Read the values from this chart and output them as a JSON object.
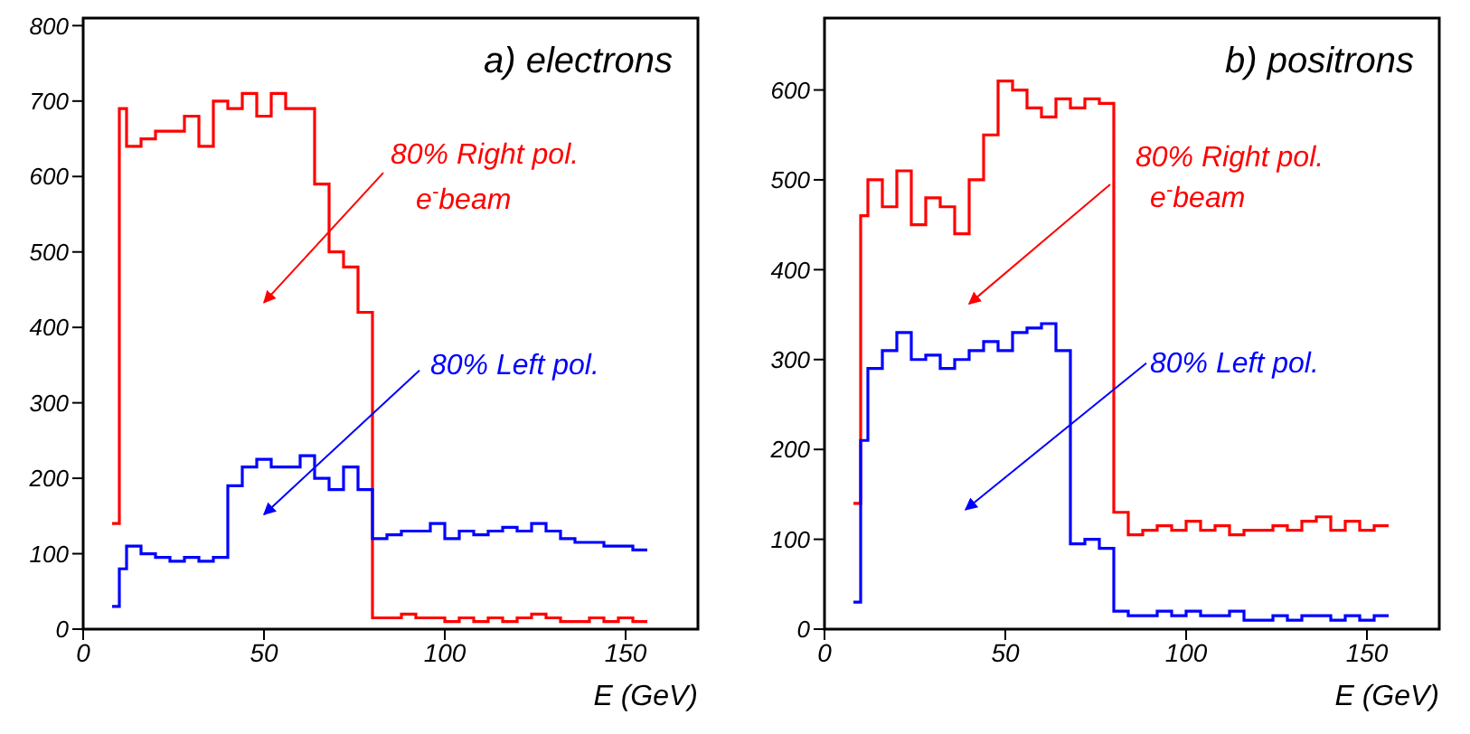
{
  "chart_data": [
    {
      "type": "histogram",
      "title": "a) electrons",
      "xlabel": "E (GeV)",
      "bins": [
        8,
        10,
        12,
        16,
        20,
        24,
        28,
        32,
        36,
        40,
        44,
        48,
        52,
        56,
        60,
        64,
        68,
        72,
        76,
        80,
        84,
        88,
        92,
        96,
        100,
        104,
        108,
        112,
        116,
        120,
        124,
        128,
        132,
        136,
        140,
        144,
        148,
        152,
        156
      ],
      "series": [
        {
          "color": "#ff0000",
          "values": [
            140,
            690,
            640,
            650,
            660,
            660,
            680,
            640,
            700,
            690,
            710,
            680,
            710,
            690,
            690,
            590,
            500,
            480,
            420,
            15,
            15,
            20,
            15,
            15,
            10,
            15,
            10,
            15,
            10,
            15,
            20,
            15,
            10,
            10,
            15,
            10,
            15,
            10
          ]
        },
        {
          "color": "#0000ff",
          "values": [
            30,
            80,
            110,
            100,
            95,
            90,
            95,
            90,
            95,
            190,
            215,
            225,
            215,
            215,
            230,
            200,
            185,
            215,
            185,
            120,
            125,
            130,
            130,
            140,
            120,
            130,
            125,
            130,
            135,
            130,
            140,
            130,
            120,
            115,
            115,
            110,
            110,
            105
          ]
        }
      ],
      "annotations": [
        "80% Right pol.",
        "e$^{-}$beam",
        "80% Left pol."
      ],
      "xlim": [
        0,
        170
      ],
      "ylim": [
        0,
        810
      ],
      "xticks": [
        0,
        50,
        100,
        150
      ],
      "yticks": [
        0,
        100,
        200,
        300,
        400,
        500,
        600,
        700,
        800
      ],
      "grid": false,
      "legend": false
    },
    {
      "type": "histogram",
      "title": "b) positrons",
      "xlabel": "E (GeV)",
      "bins": [
        8,
        10,
        12,
        16,
        20,
        24,
        28,
        32,
        36,
        40,
        44,
        48,
        52,
        56,
        60,
        64,
        68,
        72,
        76,
        80,
        84,
        88,
        92,
        96,
        100,
        104,
        108,
        112,
        116,
        120,
        124,
        128,
        132,
        136,
        140,
        144,
        148,
        152,
        156
      ],
      "series": [
        {
          "color": "#ff0000",
          "values": [
            140,
            460,
            500,
            470,
            510,
            450,
            480,
            470,
            440,
            500,
            550,
            610,
            600,
            580,
            570,
            590,
            580,
            590,
            585,
            130,
            105,
            110,
            115,
            110,
            120,
            110,
            115,
            105,
            110,
            110,
            115,
            110,
            120,
            125,
            110,
            120,
            110,
            115
          ]
        },
        {
          "color": "#0000ff",
          "values": [
            30,
            210,
            290,
            310,
            330,
            300,
            305,
            290,
            300,
            310,
            320,
            310,
            330,
            335,
            340,
            310,
            95,
            100,
            90,
            20,
            15,
            15,
            20,
            15,
            20,
            15,
            15,
            20,
            10,
            10,
            15,
            10,
            15,
            15,
            10,
            15,
            10,
            15
          ]
        }
      ],
      "annotations": [
        "80% Right pol.",
        "e$^{-}$beam",
        "80% Left pol."
      ],
      "xlim": [
        0,
        170
      ],
      "ylim": [
        0,
        680
      ],
      "xticks": [
        0,
        50,
        100,
        150
      ],
      "yticks": [
        0,
        100,
        200,
        300,
        400,
        500,
        600
      ],
      "grid": false,
      "legend": false
    }
  ]
}
